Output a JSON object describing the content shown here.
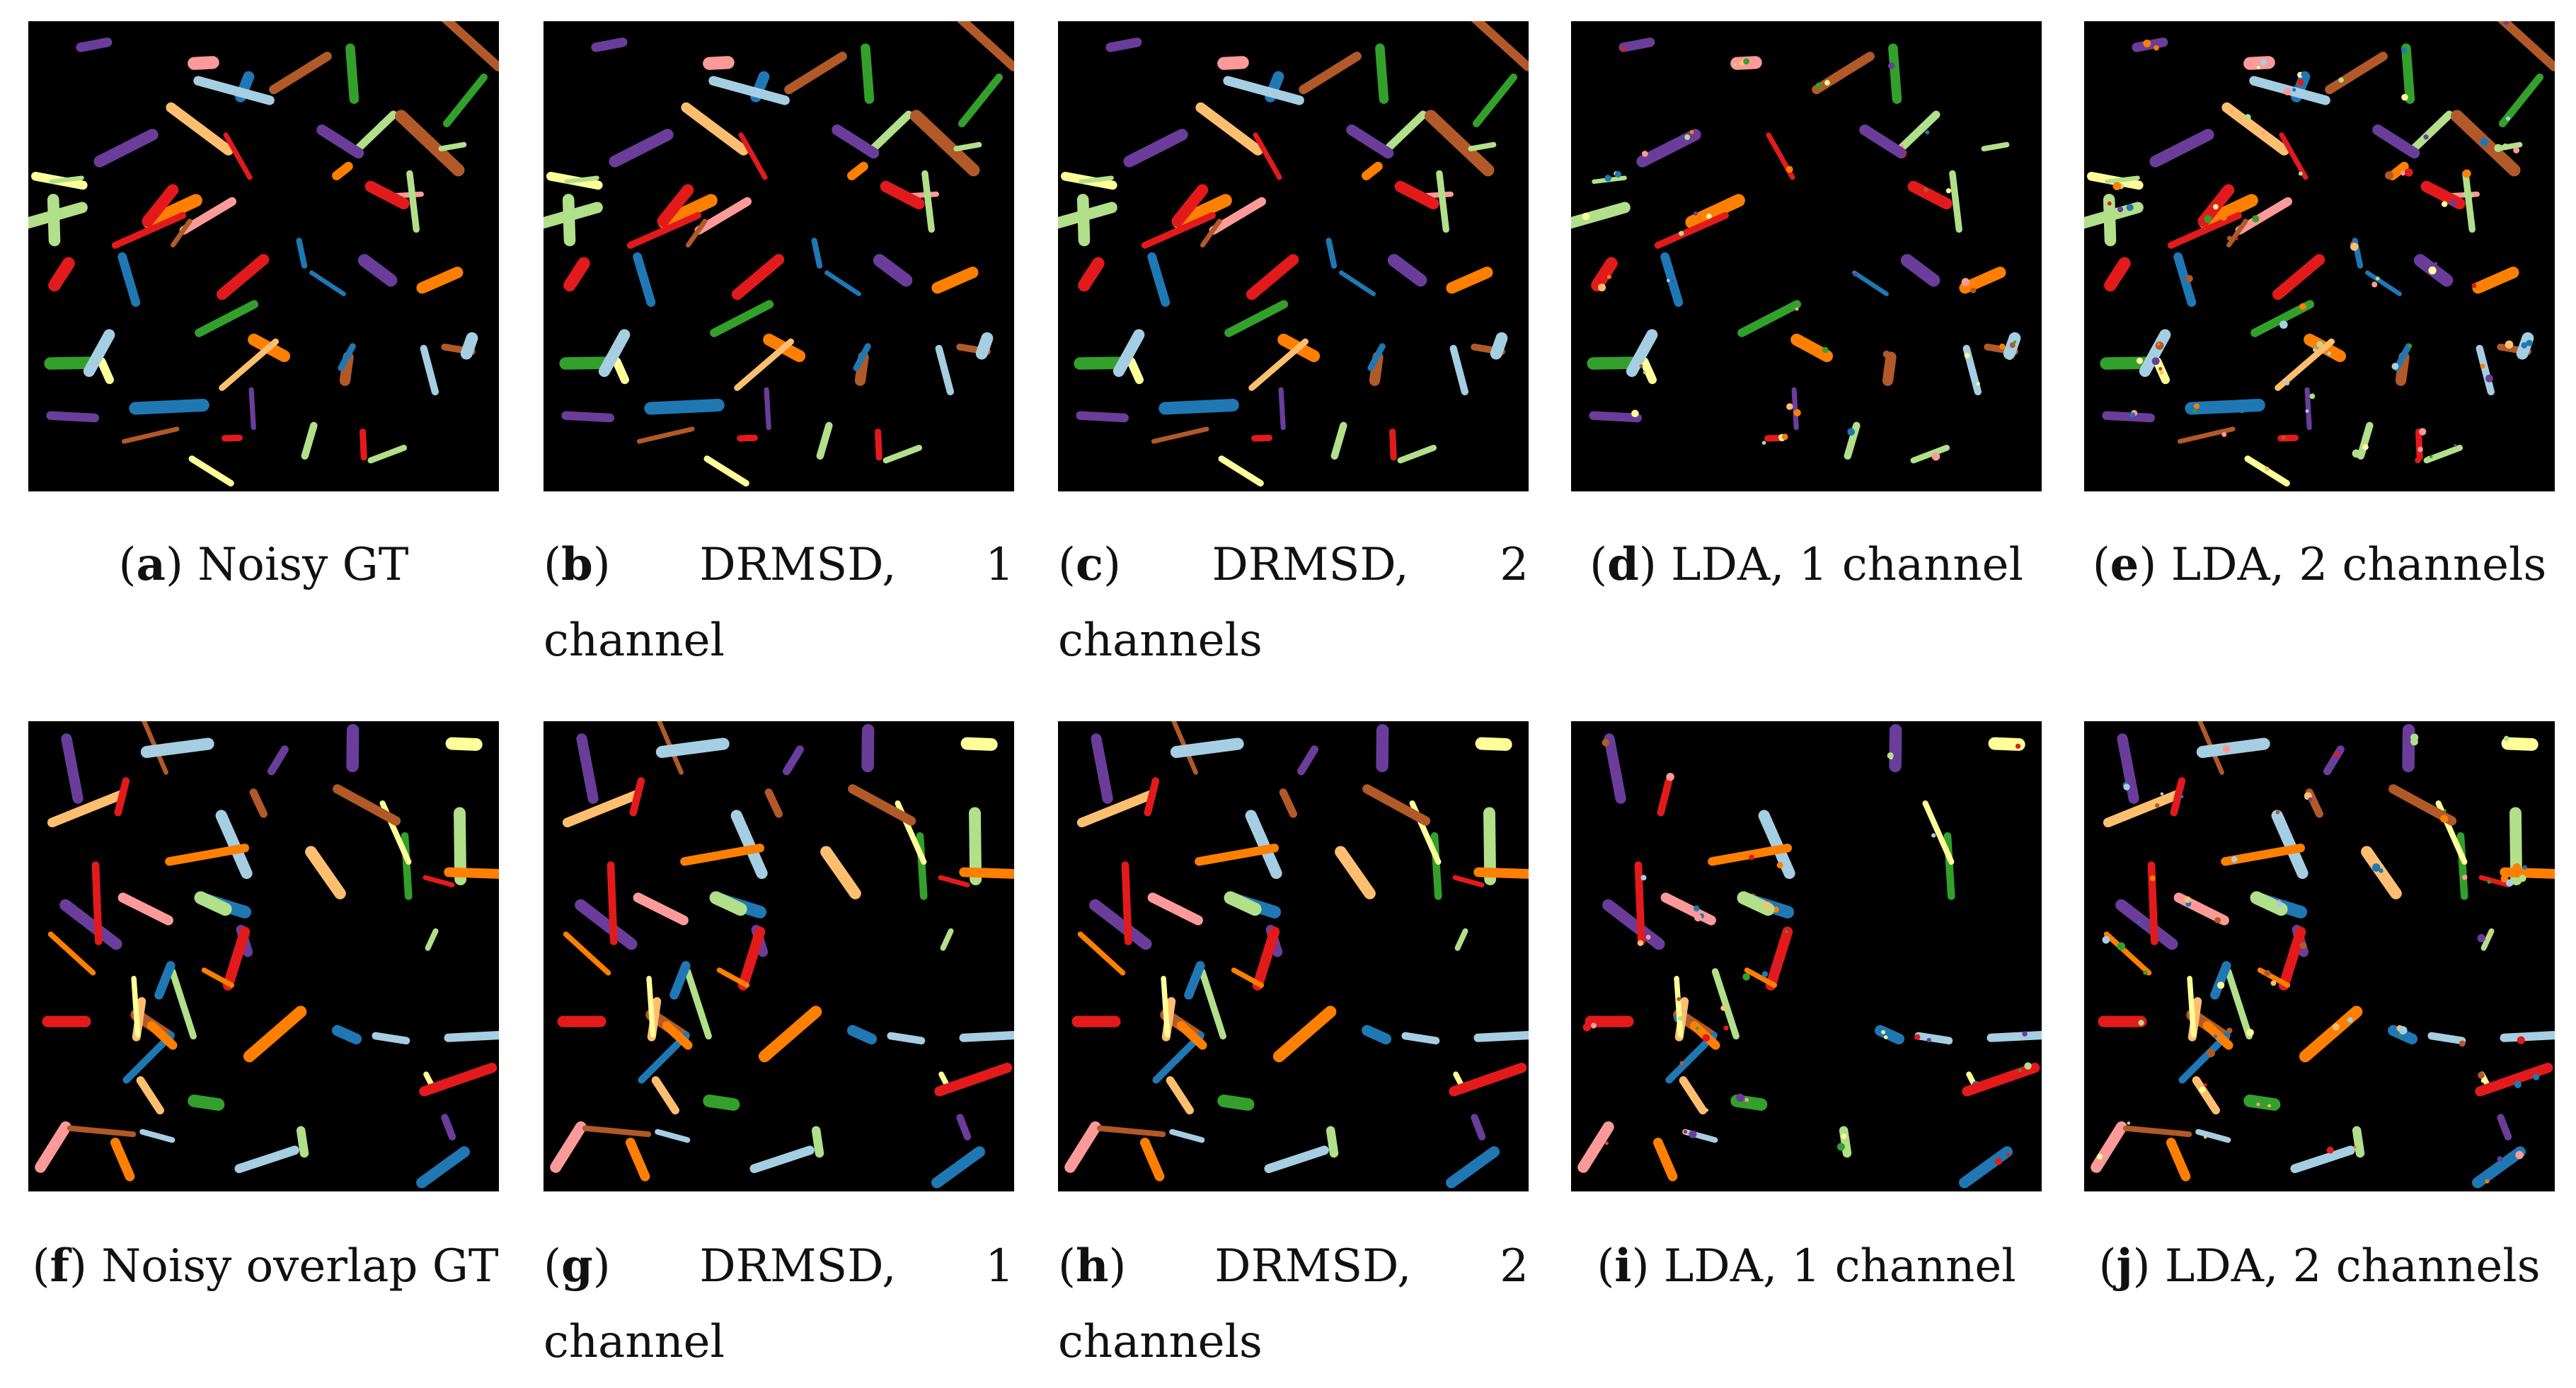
{
  "figure": {
    "rows": [
      {
        "panels": [
          {
            "id": "a",
            "paren_open": "(",
            "letter": "a",
            "paren_close": ")",
            "text": " Noisy GT"
          },
          {
            "id": "b",
            "paren_open": "(",
            "letter": "b",
            "paren_close": ")",
            "text": " DRMSD, 1 channel"
          },
          {
            "id": "c",
            "paren_open": "(",
            "letter": "c",
            "paren_close": ")",
            "text": " DRMSD, 2 channels"
          },
          {
            "id": "d",
            "paren_open": "(",
            "letter": "d",
            "paren_close": ")",
            "text": " LDA, 1 channel"
          },
          {
            "id": "e",
            "paren_open": "(",
            "letter": "e",
            "paren_close": ")",
            "text": " LDA, 2 channels"
          }
        ]
      },
      {
        "panels": [
          {
            "id": "f",
            "paren_open": "(",
            "letter": "f",
            "paren_close": ")",
            "text": " Noisy overlap GT"
          },
          {
            "id": "g",
            "paren_open": "(",
            "letter": "g",
            "paren_close": ")",
            "text": " DRMSD, 1 channel"
          },
          {
            "id": "h",
            "paren_open": "(",
            "letter": "h",
            "paren_close": ")",
            "text": " DRMSD, 2 channels"
          },
          {
            "id": "i",
            "paren_open": "(",
            "letter": "i",
            "paren_close": ")",
            "text": " LDA, 1 channel"
          },
          {
            "id": "j",
            "paren_open": "(",
            "letter": "j",
            "paren_close": ")",
            "text": " LDA, 2 channels"
          }
        ]
      }
    ],
    "palette": [
      "#1f78b4",
      "#a6cee3",
      "#33a02c",
      "#b2df8a",
      "#e31a1c",
      "#fb9a99",
      "#ff7f00",
      "#fdbf6f",
      "#6a3d9a",
      "#b15928",
      "#ffff99"
    ],
    "background": "#000000"
  }
}
